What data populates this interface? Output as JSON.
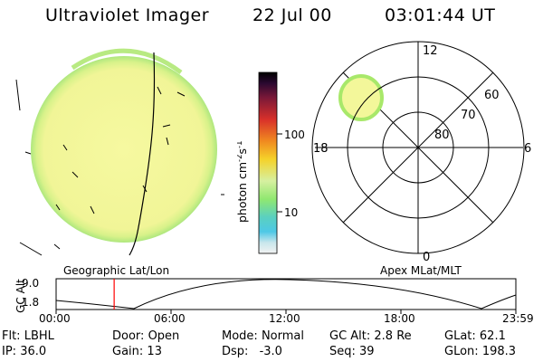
{
  "header": {
    "instrument": "Ultraviolet Imager",
    "date": "22 Jul 00",
    "time": "03:01:44 UT"
  },
  "colorbar": {
    "unit_label": "photon cm",
    "exp1": "-2",
    "mid": "s",
    "exp2": "-1",
    "ticks": [
      "100",
      "10"
    ]
  },
  "polar_plot": {
    "mlat_labels": [
      "80",
      "70",
      "60"
    ],
    "mlt_labels": [
      "12",
      "18",
      "6",
      "0"
    ]
  },
  "projection_labels": {
    "left": "Geographic Lat/Lon",
    "right": "Apex MLat/MLT"
  },
  "altitude_strip": {
    "ylabel": "GC Alt",
    "ytick_top": "9.0",
    "ytick_bottom": "1.8",
    "time_ticks": [
      "00:00",
      "06:00",
      "12:00",
      "18:00",
      "23:59"
    ],
    "current_time_marker_hours": 3.03,
    "marker_color": "#ff0000"
  },
  "status": {
    "row1": [
      {
        "key": "Flt:",
        "value": "LBHL"
      },
      {
        "key": "Door:",
        "value": "Open"
      },
      {
        "key": "Mode:",
        "value": "Normal"
      },
      {
        "key": "GC Alt:",
        "value": "2.8 Re"
      },
      {
        "key": "GLat:",
        "value": "62.1"
      }
    ],
    "row2": [
      {
        "key": "IP:",
        "value": "36.0"
      },
      {
        "key": "Gain:",
        "value": "13"
      },
      {
        "key": "Dsp:",
        "value": "-3.0"
      },
      {
        "key": "Seq:",
        "value": "39"
      },
      {
        "key": "GLon:",
        "value": "198.3"
      }
    ]
  },
  "colors": {
    "disk_fill": "#f3f79a",
    "disk_rim": "#c4ee7a",
    "spot_fill": "#f3f79a",
    "spot_rim": "#a8e86a"
  }
}
